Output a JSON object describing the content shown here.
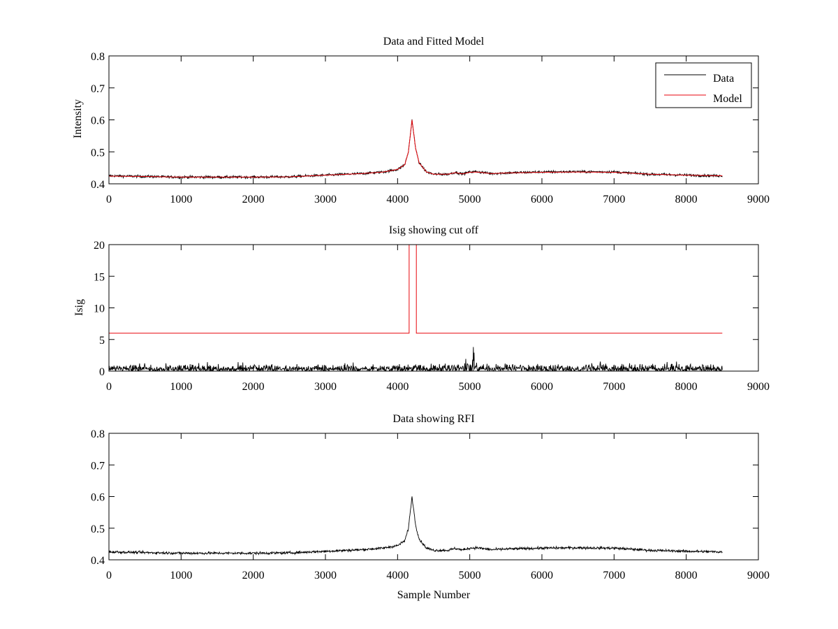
{
  "chart_data": [
    {
      "type": "line",
      "title": "Data and Fitted Model",
      "xlabel": "",
      "ylabel": "Intensity",
      "xlim": [
        0,
        9000
      ],
      "ylim": [
        0.4,
        0.8
      ],
      "xticks": [
        0,
        1000,
        2000,
        3000,
        4000,
        5000,
        6000,
        7000,
        8000,
        9000
      ],
      "yticks": [
        0.4,
        0.5,
        0.6,
        0.7,
        0.8
      ],
      "grid": false,
      "legend": {
        "position": "top-right",
        "entries": [
          "Data",
          "Model"
        ]
      },
      "series": [
        {
          "name": "Data",
          "color": "#000000",
          "style": "noisy",
          "noise": 0.004,
          "x": [
            0,
            500,
            1000,
            1500,
            2000,
            2500,
            3000,
            3500,
            3800,
            4000,
            4100,
            4150,
            4200,
            4250,
            4300,
            4400,
            4500,
            4700,
            4800,
            4900,
            5000,
            5100,
            5300,
            5500,
            6000,
            6500,
            7000,
            7500,
            8000,
            8500
          ],
          "y": [
            0.425,
            0.423,
            0.421,
            0.421,
            0.421,
            0.422,
            0.427,
            0.432,
            0.437,
            0.445,
            0.46,
            0.5,
            0.6,
            0.51,
            0.465,
            0.437,
            0.43,
            0.43,
            0.436,
            0.431,
            0.437,
            0.438,
            0.432,
            0.434,
            0.437,
            0.438,
            0.437,
            0.43,
            0.427,
            0.425
          ]
        },
        {
          "name": "Model",
          "color": "#e8060c",
          "style": "smooth",
          "x": [
            0,
            500,
            1000,
            1500,
            2000,
            2500,
            3000,
            3500,
            3800,
            4000,
            4100,
            4150,
            4200,
            4250,
            4300,
            4400,
            4500,
            4700,
            4800,
            4900,
            5000,
            5100,
            5300,
            5500,
            6000,
            6500,
            7000,
            7500,
            8000,
            8500
          ],
          "y": [
            0.424,
            0.423,
            0.421,
            0.421,
            0.421,
            0.422,
            0.427,
            0.432,
            0.437,
            0.445,
            0.46,
            0.5,
            0.6,
            0.51,
            0.465,
            0.437,
            0.43,
            0.43,
            0.435,
            0.431,
            0.436,
            0.437,
            0.432,
            0.434,
            0.436,
            0.437,
            0.436,
            0.43,
            0.427,
            0.425
          ]
        }
      ]
    },
    {
      "type": "line",
      "title": "Isig showing cut off",
      "xlabel": "",
      "ylabel": "Isig",
      "xlim": [
        0,
        9000
      ],
      "ylim": [
        0,
        20
      ],
      "xticks": [
        0,
        1000,
        2000,
        3000,
        4000,
        5000,
        6000,
        7000,
        8000,
        9000
      ],
      "yticks": [
        0,
        5,
        10,
        15,
        20
      ],
      "grid": false,
      "series": [
        {
          "color": "#000000",
          "style": "abs-noise",
          "noise": 0.95,
          "x": [
            0,
            1000,
            2000,
            3000,
            4000,
            4900,
            5000,
            5050,
            5100,
            5200,
            6000,
            7000,
            8000,
            8500
          ],
          "y": [
            0.8,
            0.8,
            0.8,
            0.8,
            0.8,
            0.9,
            1.5,
            2.6,
            1.8,
            0.9,
            0.8,
            0.8,
            0.8,
            0.8
          ]
        },
        {
          "color": "#e8060c",
          "style": "step",
          "x": [
            0,
            4160,
            4160,
            4260,
            4260,
            8500
          ],
          "y": [
            6,
            6,
            20,
            20,
            6,
            6
          ]
        }
      ]
    },
    {
      "type": "line",
      "title": "Data showing RFI",
      "xlabel": "Sample Number",
      "ylabel": "",
      "xlim": [
        0,
        9000
      ],
      "ylim": [
        0.4,
        0.8
      ],
      "xticks": [
        0,
        1000,
        2000,
        3000,
        4000,
        5000,
        6000,
        7000,
        8000,
        9000
      ],
      "yticks": [
        0.4,
        0.5,
        0.6,
        0.7,
        0.8
      ],
      "grid": false,
      "series": [
        {
          "color": "#000000",
          "style": "noisy",
          "noise": 0.004,
          "x": [
            0,
            500,
            1000,
            1500,
            2000,
            2500,
            3000,
            3500,
            3800,
            4000,
            4100,
            4150,
            4200,
            4250,
            4300,
            4400,
            4500,
            4700,
            4800,
            4900,
            5000,
            5100,
            5300,
            5500,
            6000,
            6500,
            7000,
            7500,
            8000,
            8500
          ],
          "y": [
            0.425,
            0.423,
            0.421,
            0.421,
            0.421,
            0.422,
            0.427,
            0.432,
            0.437,
            0.445,
            0.46,
            0.5,
            0.6,
            0.51,
            0.465,
            0.437,
            0.43,
            0.43,
            0.436,
            0.431,
            0.437,
            0.438,
            0.432,
            0.434,
            0.437,
            0.438,
            0.437,
            0.43,
            0.427,
            0.425
          ]
        }
      ]
    }
  ]
}
